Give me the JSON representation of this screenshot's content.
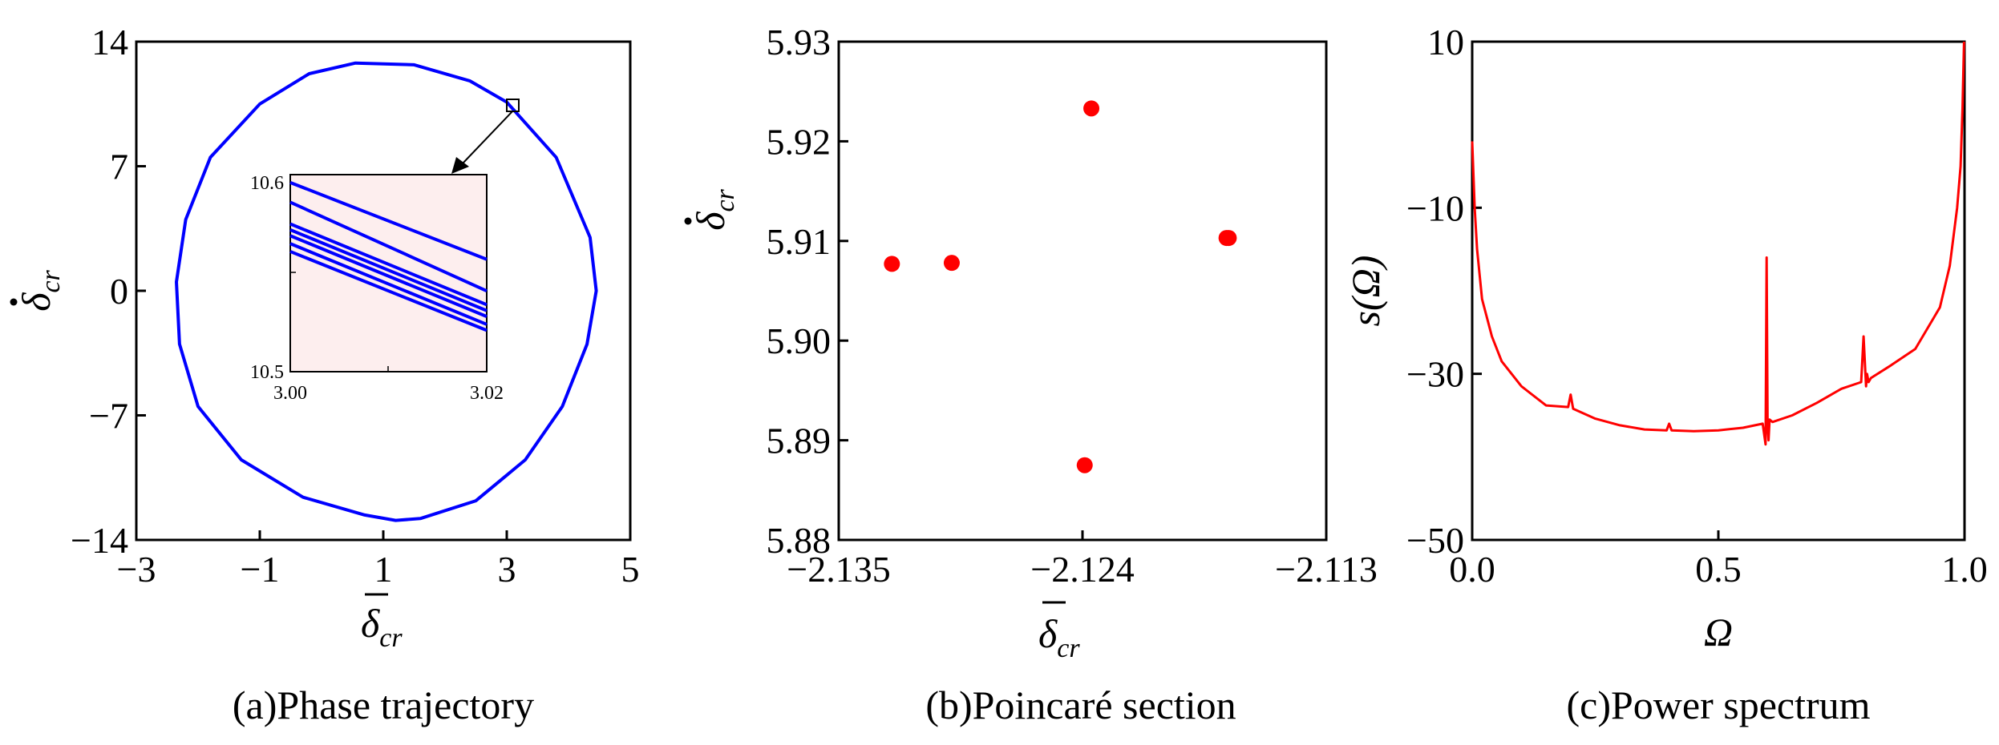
{
  "colors": {
    "trajectory": "#0000ff",
    "poincare": "#ff0000",
    "spectrum": "#ff0000",
    "inset_bg": "#fdeeee"
  },
  "chart_data": [
    {
      "type": "line",
      "caption": "(a)Phase trajectory",
      "xlabel": "δcr",
      "ylabel": "δ̇cr",
      "xlim": [
        -3,
        5
      ],
      "ylim": [
        -14,
        14
      ],
      "xticks": [
        "-3",
        "-1",
        "1",
        "3",
        "5"
      ],
      "xtick_values": [
        -3,
        -1,
        1,
        3,
        5
      ],
      "yticks": [
        "-14",
        "-7",
        "0",
        "7",
        "14"
      ],
      "ytick_values": [
        -14,
        -7,
        0,
        7,
        14
      ],
      "series": [
        {
          "x": [
            3.0,
            3.8,
            4.35,
            4.45,
            4.3,
            3.9,
            3.3,
            2.5,
            1.6,
            1.2,
            0.7,
            -0.3,
            -1.3,
            -2.0,
            -2.3,
            -2.35,
            -2.2,
            -1.8,
            -1.0,
            -0.2,
            0.55,
            1.5,
            2.4,
            3.0
          ],
          "y": [
            10.6,
            7.5,
            3.0,
            0.0,
            -3.0,
            -6.5,
            -9.5,
            -11.8,
            -12.8,
            -12.9,
            -12.6,
            -11.6,
            -9.5,
            -6.5,
            -3.0,
            0.5,
            4.0,
            7.5,
            10.5,
            12.2,
            12.8,
            12.7,
            11.8,
            10.6
          ]
        }
      ],
      "inset": {
        "xlim": [
          3.0,
          3.02
        ],
        "ylim": [
          10.5,
          10.6
        ],
        "xticks": [
          "3.00",
          "3.02"
        ],
        "yticks": [
          "10.5",
          "10.6"
        ],
        "lines": [
          [
            10.596,
            10.557
          ],
          [
            10.586,
            10.541
          ],
          [
            10.575,
            10.534
          ],
          [
            10.572,
            10.531
          ],
          [
            10.569,
            10.528
          ],
          [
            10.565,
            10.524
          ],
          [
            10.561,
            10.521
          ]
        ]
      }
    },
    {
      "type": "scatter",
      "caption": "(b)Poincaré section",
      "xlabel": "δcr",
      "ylabel": "δ̇cr",
      "xlim": [
        -2.135,
        -2.113
      ],
      "ylim": [
        5.88,
        5.93
      ],
      "xticks": [
        "-2.135",
        "-2.124",
        "-2.113"
      ],
      "xtick_values": [
        -2.135,
        -2.124,
        -2.113
      ],
      "yticks": [
        "5.88",
        "5.89",
        "5.90",
        "5.91",
        "5.92",
        "5.93"
      ],
      "ytick_values": [
        5.88,
        5.89,
        5.9,
        5.91,
        5.92,
        5.93
      ],
      "series": [
        {
          "x": [
            -2.1326,
            -2.1299,
            -2.1239,
            -2.1236,
            -2.1175,
            -2.1174
          ],
          "y": [
            5.9077,
            5.9078,
            5.8875,
            5.9233,
            5.9103,
            5.9103
          ]
        }
      ]
    },
    {
      "type": "line",
      "caption": "(c)Power spectrum",
      "xlabel": "Ω",
      "ylabel": "s(Ω)",
      "xlim": [
        0.0,
        1.0
      ],
      "ylim": [
        -50,
        10
      ],
      "xticks": [
        "0.0",
        "0.5",
        "1.0"
      ],
      "xtick_values": [
        0,
        0.5,
        1.0
      ],
      "yticks": [
        "-50",
        "-30",
        "-10",
        "10"
      ],
      "ytick_values": [
        -50,
        -30,
        -10,
        10
      ],
      "series": [
        {
          "x": [
            0.0,
            0.005,
            0.01,
            0.02,
            0.04,
            0.06,
            0.1,
            0.15,
            0.195,
            0.2,
            0.205,
            0.25,
            0.3,
            0.35,
            0.395,
            0.4,
            0.405,
            0.45,
            0.5,
            0.55,
            0.59,
            0.596,
            0.598,
            0.6,
            0.602,
            0.604,
            0.61,
            0.65,
            0.7,
            0.75,
            0.79,
            0.795,
            0.8,
            0.802,
            0.805,
            0.81,
            0.85,
            0.9,
            0.95,
            0.97,
            0.985,
            0.992,
            0.996,
            0.999
          ],
          "y": [
            -2,
            -10,
            -15,
            -21,
            -25.5,
            -28.5,
            -31.5,
            -33.8,
            -34,
            -32.5,
            -34.2,
            -35.4,
            -36.2,
            -36.7,
            -36.8,
            -36.0,
            -36.8,
            -36.9,
            -36.8,
            -36.5,
            -36,
            -38.5,
            -16,
            -36.3,
            -38,
            -35.5,
            -35.8,
            -35,
            -33.5,
            -31.8,
            -31,
            -25.5,
            -31.5,
            -30,
            -31,
            -30.5,
            -29,
            -27,
            -22,
            -17,
            -10,
            -5,
            2,
            10
          ]
        }
      ]
    }
  ]
}
